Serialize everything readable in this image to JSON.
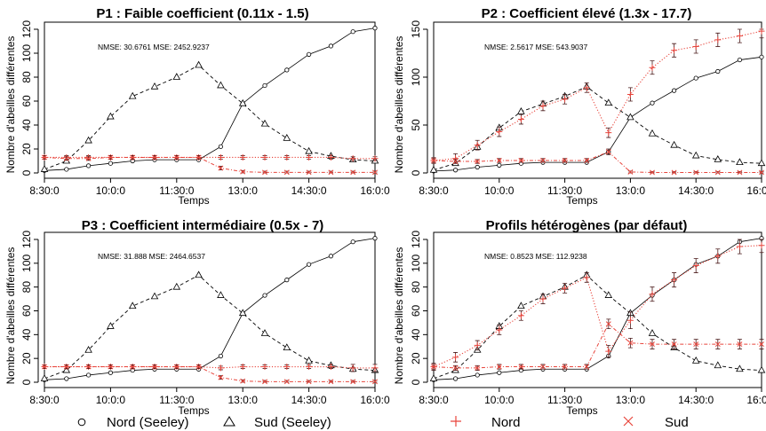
{
  "chart_data": [
    {
      "type": "line",
      "title": "P1 : Faible coefficient (0.11x - 1.5)",
      "xlabel": "Temps",
      "ylabel": "Nombre d'abeilles différentes",
      "stats": "NMSE: 30.6761 MSE: 2452.9237",
      "xticks": [
        "8:30:0",
        "10:0:0",
        "11:30:0",
        "13:0:0",
        "14:30:0",
        "16:0:0"
      ],
      "yticks": [
        0,
        20,
        40,
        60,
        80,
        100,
        120
      ],
      "ylim": [
        0,
        120
      ],
      "x": [
        0,
        0.5,
        1,
        1.5,
        2,
        2.5,
        3,
        3.5,
        4,
        4.5,
        5,
        5.5,
        6,
        6.5,
        7,
        7.5
      ],
      "series": [
        {
          "name": "Nord (Seeley)",
          "style": "seeley-nord",
          "values": [
            2,
            3,
            6,
            8,
            10,
            11,
            11,
            11,
            22,
            58,
            73,
            86,
            99,
            106,
            118,
            121
          ]
        },
        {
          "name": "Sud (Seeley)",
          "style": "seeley-sud",
          "values": [
            3,
            10,
            27,
            47,
            64,
            72,
            80,
            90,
            73,
            58,
            41,
            29,
            18,
            14,
            11,
            10
          ]
        },
        {
          "name": "Nord",
          "style": "sim-nord",
          "values": [
            13,
            13,
            13,
            13,
            13,
            13,
            13,
            13,
            13,
            13,
            13,
            13,
            13,
            13,
            12,
            12
          ],
          "errors": [
            1.5,
            1.5,
            1.5,
            1.5,
            1.5,
            1.5,
            1.5,
            1.5,
            1.5,
            1.5,
            1.5,
            1.5,
            1.5,
            1.5,
            1.5,
            1.5
          ]
        },
        {
          "name": "Sud",
          "style": "sim-sud",
          "values": [
            13,
            12,
            12,
            13,
            13,
            13,
            13,
            13,
            4,
            1,
            0.5,
            0.5,
            0.5,
            0.5,
            0.5,
            0.5
          ],
          "errors": [
            1.5,
            1.5,
            1.5,
            1.5,
            1.5,
            1.5,
            1.5,
            1.5,
            1.5,
            1,
            1,
            1,
            1,
            1,
            1,
            1
          ]
        }
      ]
    },
    {
      "type": "line",
      "title": "P2 : Coefficient élevé (1.3x - 17.7)",
      "xlabel": "Temps",
      "ylabel": "Nombre d'abeilles différentes",
      "stats": "NMSE: 2.5617 MSE: 543.9037",
      "xticks": [
        "8:30:0",
        "10:0:0",
        "11:30:0",
        "13:0:0",
        "14:30:0",
        "16:0:0"
      ],
      "yticks": [
        0,
        50,
        100,
        150
      ],
      "ylim": [
        0,
        150
      ],
      "x": [
        0,
        0.5,
        1,
        1.5,
        2,
        2.5,
        3,
        3.5,
        4,
        4.5,
        5,
        5.5,
        6,
        6.5,
        7,
        7.5
      ],
      "series": [
        {
          "name": "Nord (Seeley)",
          "style": "seeley-nord",
          "values": [
            2,
            3,
            6,
            8,
            10,
            11,
            11,
            11,
            22,
            58,
            73,
            86,
            99,
            106,
            118,
            121
          ]
        },
        {
          "name": "Sud (Seeley)",
          "style": "seeley-sud",
          "values": [
            3,
            10,
            27,
            47,
            64,
            72,
            80,
            90,
            73,
            58,
            41,
            29,
            18,
            14,
            11,
            10
          ]
        },
        {
          "name": "Nord",
          "style": "sim-nord",
          "values": [
            13,
            15,
            29,
            43,
            56,
            70,
            77,
            89,
            42,
            82,
            110,
            128,
            132,
            139,
            143,
            148
          ],
          "errors": [
            3,
            5,
            5,
            5,
            5,
            5,
            5,
            5,
            5,
            7,
            7,
            7,
            7,
            7,
            7,
            7
          ]
        },
        {
          "name": "Sud",
          "style": "sim-sud",
          "values": [
            13,
            12,
            12,
            13,
            13,
            13,
            13,
            13,
            22,
            1,
            0.5,
            0.5,
            0.5,
            0.5,
            0.5,
            0.5
          ],
          "errors": [
            2,
            2,
            2,
            2,
            2,
            2,
            2,
            2,
            3,
            1,
            1,
            1,
            1,
            1,
            1,
            1
          ]
        }
      ]
    },
    {
      "type": "line",
      "title": "P3 : Coefficient intermédiaire (0.5x - 7)",
      "xlabel": "Temps",
      "ylabel": "Nombre d'abeilles différentes",
      "stats": "NMSE: 31.888 MSE: 2464.6537",
      "xticks": [
        "8:30:0",
        "10:0:0",
        "11:30:0",
        "13:0:0",
        "14:30:0",
        "16:0:0"
      ],
      "yticks": [
        0,
        20,
        40,
        60,
        80,
        100,
        120
      ],
      "ylim": [
        0,
        120
      ],
      "x": [
        0,
        0.5,
        1,
        1.5,
        2,
        2.5,
        3,
        3.5,
        4,
        4.5,
        5,
        5.5,
        6,
        6.5,
        7,
        7.5
      ],
      "series": [
        {
          "name": "Nord (Seeley)",
          "style": "seeley-nord",
          "values": [
            2,
            3,
            6,
            8,
            10,
            11,
            11,
            11,
            22,
            58,
            73,
            86,
            99,
            106,
            118,
            121
          ]
        },
        {
          "name": "Sud (Seeley)",
          "style": "seeley-sud",
          "values": [
            3,
            10,
            27,
            47,
            64,
            72,
            80,
            90,
            73,
            58,
            41,
            29,
            18,
            14,
            11,
            10
          ]
        },
        {
          "name": "Nord",
          "style": "sim-nord",
          "values": [
            13,
            13,
            13,
            13,
            13,
            13,
            13,
            13,
            12,
            13,
            13,
            13,
            13,
            13,
            12,
            12
          ],
          "errors": [
            1.5,
            1.5,
            1.5,
            1.5,
            1.5,
            1.5,
            1.5,
            1.5,
            1.5,
            1.5,
            1.5,
            1.5,
            1.5,
            1.5,
            3,
            3
          ]
        },
        {
          "name": "Sud",
          "style": "sim-sud",
          "values": [
            13,
            13,
            13,
            13,
            13,
            13,
            13,
            13,
            4,
            1,
            0.5,
            0.5,
            0.5,
            0.5,
            0.5,
            0.5
          ],
          "errors": [
            1.5,
            1.5,
            1.5,
            1.5,
            1.5,
            1.5,
            1.5,
            1.5,
            1.5,
            1,
            1,
            1,
            1,
            1,
            1,
            1
          ]
        }
      ]
    },
    {
      "type": "line",
      "title": "Profils hétérogènes (par défaut)",
      "xlabel": "Temps",
      "ylabel": "Nombre d'abeilles différentes",
      "stats": "NMSE: 0.8523 MSE: 112.9238",
      "xticks": [
        "8:30:0",
        "10:0:0",
        "11:30:0",
        "13:0:0",
        "14:30:0",
        "16:0:0"
      ],
      "yticks": [
        0,
        20,
        40,
        60,
        80,
        100,
        120
      ],
      "ylim": [
        0,
        120
      ],
      "x": [
        0,
        0.5,
        1,
        1.5,
        2,
        2.5,
        3,
        3.5,
        4,
        4.5,
        5,
        5.5,
        6,
        6.5,
        7,
        7.5
      ],
      "series": [
        {
          "name": "Nord (Seeley)",
          "style": "seeley-nord",
          "values": [
            2,
            3,
            6,
            8,
            10,
            11,
            11,
            11,
            22,
            58,
            73,
            86,
            99,
            106,
            118,
            121
          ]
        },
        {
          "name": "Sud (Seeley)",
          "style": "seeley-sud",
          "values": [
            3,
            10,
            27,
            47,
            64,
            72,
            80,
            90,
            73,
            58,
            41,
            29,
            18,
            14,
            11,
            10
          ]
        },
        {
          "name": "Nord",
          "style": "sim-nord",
          "values": [
            13,
            21,
            31,
            44,
            56,
            70,
            79,
            88,
            26,
            52,
            74,
            86,
            98,
            106,
            114,
            115
          ],
          "errors": [
            3,
            4,
            4,
            4,
            4,
            4,
            4,
            4,
            5,
            7,
            6,
            6,
            6,
            6,
            6,
            6
          ]
        },
        {
          "name": "Sud",
          "style": "sim-sud",
          "values": [
            13,
            12,
            12,
            13,
            13,
            13,
            13,
            13,
            49,
            33,
            32,
            32,
            32,
            32,
            32,
            32
          ],
          "errors": [
            2,
            2,
            2,
            2,
            2,
            2,
            2,
            2,
            4,
            4,
            4,
            4,
            4,
            4,
            4,
            4
          ]
        }
      ]
    }
  ],
  "legend": {
    "items": [
      {
        "label": "Nord (Seeley)",
        "marker": "circle",
        "color": "#000000"
      },
      {
        "label": "Sud (Seeley)",
        "marker": "triangle",
        "color": "#000000"
      },
      {
        "label": "Nord",
        "marker": "plus",
        "color": "#e8453c"
      },
      {
        "label": "Sud",
        "marker": "cross",
        "color": "#e8453c"
      }
    ]
  },
  "colors": {
    "seeley": "#000000",
    "sim": "#e8453c",
    "sim_dark": "#4a1a1a"
  }
}
